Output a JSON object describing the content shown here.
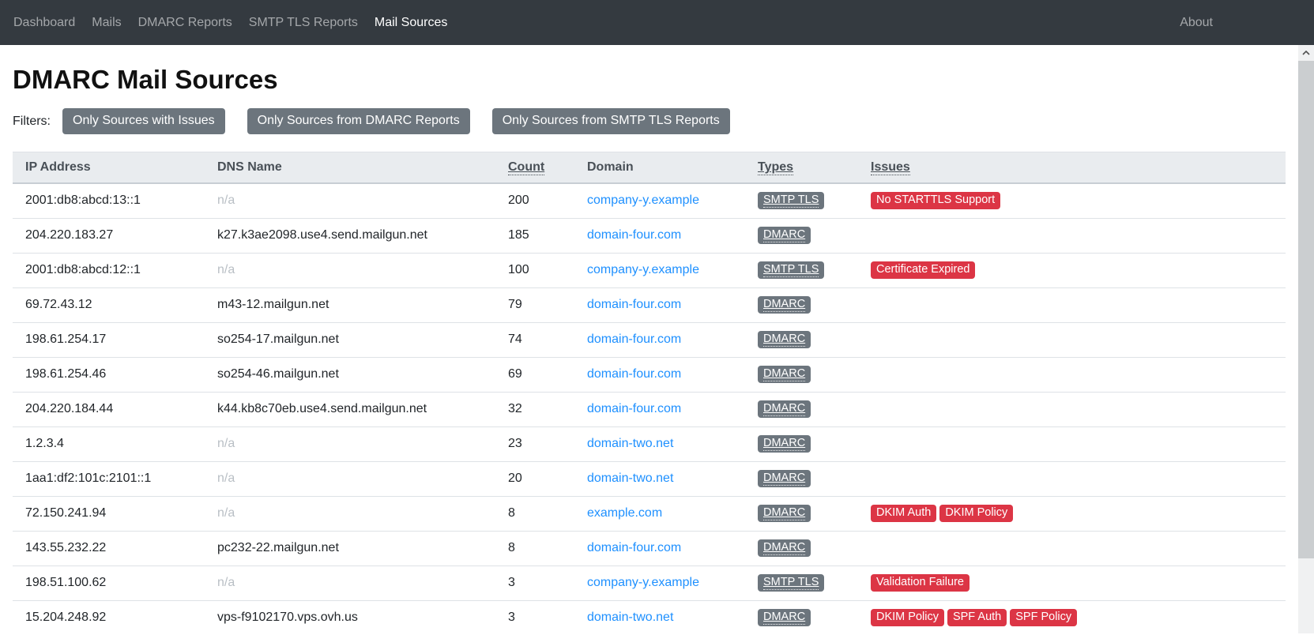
{
  "navbar": {
    "items": [
      {
        "label": "Dashboard",
        "active": false
      },
      {
        "label": "Mails",
        "active": false
      },
      {
        "label": "DMARC Reports",
        "active": false
      },
      {
        "label": "SMTP TLS Reports",
        "active": false
      },
      {
        "label": "Mail Sources",
        "active": true
      }
    ],
    "right_item": "About"
  },
  "page": {
    "title": "DMARC Mail Sources"
  },
  "filters": {
    "label": "Filters:",
    "buttons": [
      "Only Sources with Issues",
      "Only Sources from DMARC Reports",
      "Only Sources from SMTP TLS Reports"
    ]
  },
  "table": {
    "columns": [
      {
        "label": "IP Address",
        "sortable": false
      },
      {
        "label": "DNS Name",
        "sortable": false
      },
      {
        "label": "Count",
        "sortable": true
      },
      {
        "label": "Domain",
        "sortable": false
      },
      {
        "label": "Types",
        "sortable": true
      },
      {
        "label": "Issues",
        "sortable": true
      }
    ],
    "rows": [
      {
        "ip": "2001:db8:abcd:13::1",
        "dns": "n/a",
        "dns_is_na": true,
        "count": "200",
        "domain": "company-y.example",
        "types": [
          "SMTP TLS"
        ],
        "issues": [
          "No STARTTLS Support"
        ]
      },
      {
        "ip": "204.220.183.27",
        "dns": "k27.k3ae2098.use4.send.mailgun.net",
        "dns_is_na": false,
        "count": "185",
        "domain": "domain-four.com",
        "types": [
          "DMARC"
        ],
        "issues": []
      },
      {
        "ip": "2001:db8:abcd:12::1",
        "dns": "n/a",
        "dns_is_na": true,
        "count": "100",
        "domain": "company-y.example",
        "types": [
          "SMTP TLS"
        ],
        "issues": [
          "Certificate Expired"
        ]
      },
      {
        "ip": "69.72.43.12",
        "dns": "m43-12.mailgun.net",
        "dns_is_na": false,
        "count": "79",
        "domain": "domain-four.com",
        "types": [
          "DMARC"
        ],
        "issues": []
      },
      {
        "ip": "198.61.254.17",
        "dns": "so254-17.mailgun.net",
        "dns_is_na": false,
        "count": "74",
        "domain": "domain-four.com",
        "types": [
          "DMARC"
        ],
        "issues": []
      },
      {
        "ip": "198.61.254.46",
        "dns": "so254-46.mailgun.net",
        "dns_is_na": false,
        "count": "69",
        "domain": "domain-four.com",
        "types": [
          "DMARC"
        ],
        "issues": []
      },
      {
        "ip": "204.220.184.44",
        "dns": "k44.kb8c70eb.use4.send.mailgun.net",
        "dns_is_na": false,
        "count": "32",
        "domain": "domain-four.com",
        "types": [
          "DMARC"
        ],
        "issues": []
      },
      {
        "ip": "1.2.3.4",
        "dns": "n/a",
        "dns_is_na": true,
        "count": "23",
        "domain": "domain-two.net",
        "types": [
          "DMARC"
        ],
        "issues": []
      },
      {
        "ip": "1aa1:df2:101c:2101::1",
        "dns": "n/a",
        "dns_is_na": true,
        "count": "20",
        "domain": "domain-two.net",
        "types": [
          "DMARC"
        ],
        "issues": []
      },
      {
        "ip": "72.150.241.94",
        "dns": "n/a",
        "dns_is_na": true,
        "count": "8",
        "domain": "example.com",
        "types": [
          "DMARC"
        ],
        "issues": [
          "DKIM Auth",
          "DKIM Policy"
        ]
      },
      {
        "ip": "143.55.232.22",
        "dns": "pc232-22.mailgun.net",
        "dns_is_na": false,
        "count": "8",
        "domain": "domain-four.com",
        "types": [
          "DMARC"
        ],
        "issues": []
      },
      {
        "ip": "198.51.100.62",
        "dns": "n/a",
        "dns_is_na": true,
        "count": "3",
        "domain": "company-y.example",
        "types": [
          "SMTP TLS"
        ],
        "issues": [
          "Validation Failure"
        ]
      },
      {
        "ip": "15.204.248.92",
        "dns": "vps-f9102170.vps.ovh.us",
        "dns_is_na": false,
        "count": "3",
        "domain": "domain-two.net",
        "types": [
          "DMARC"
        ],
        "issues": [
          "DKIM Policy",
          "SPF Auth",
          "SPF Policy"
        ]
      }
    ]
  },
  "colors": {
    "navbar-bg": "#343a40",
    "button-gray": "#6c757d",
    "badge-gray": "#6c757d",
    "badge-red": "#dc3545",
    "link-blue": "#1e90ff",
    "header-bg": "#e9ecef"
  }
}
